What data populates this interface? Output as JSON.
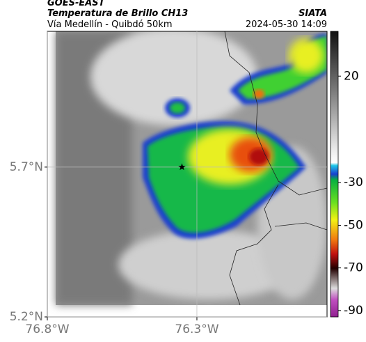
{
  "chart_data": {
    "type": "map",
    "title": "GOES-EAST",
    "subtitle": "Temperatura de Brillo CH13",
    "location": "Vía Medellín - Quibdó 50km",
    "source": "SIATA",
    "datetime": "2024-05-30 14:09",
    "xlim": [
      -76.8,
      -75.865
    ],
    "ylim": [
      5.2,
      6.153
    ],
    "xticks": [
      {
        "value": -76.8,
        "label": "76.8°W"
      },
      {
        "value": -76.3,
        "label": "76.3°W"
      }
    ],
    "yticks": [
      {
        "value": 5.2,
        "label": "5.2°N"
      },
      {
        "value": 5.7,
        "label": "5.7°N"
      }
    ],
    "grid": true,
    "marker": {
      "x": -76.35,
      "y": 5.7
    },
    "colorbar": {
      "lim": [
        -93,
        41
      ],
      "ticks": [
        20,
        -30,
        -50,
        -70,
        -90
      ]
    }
  }
}
